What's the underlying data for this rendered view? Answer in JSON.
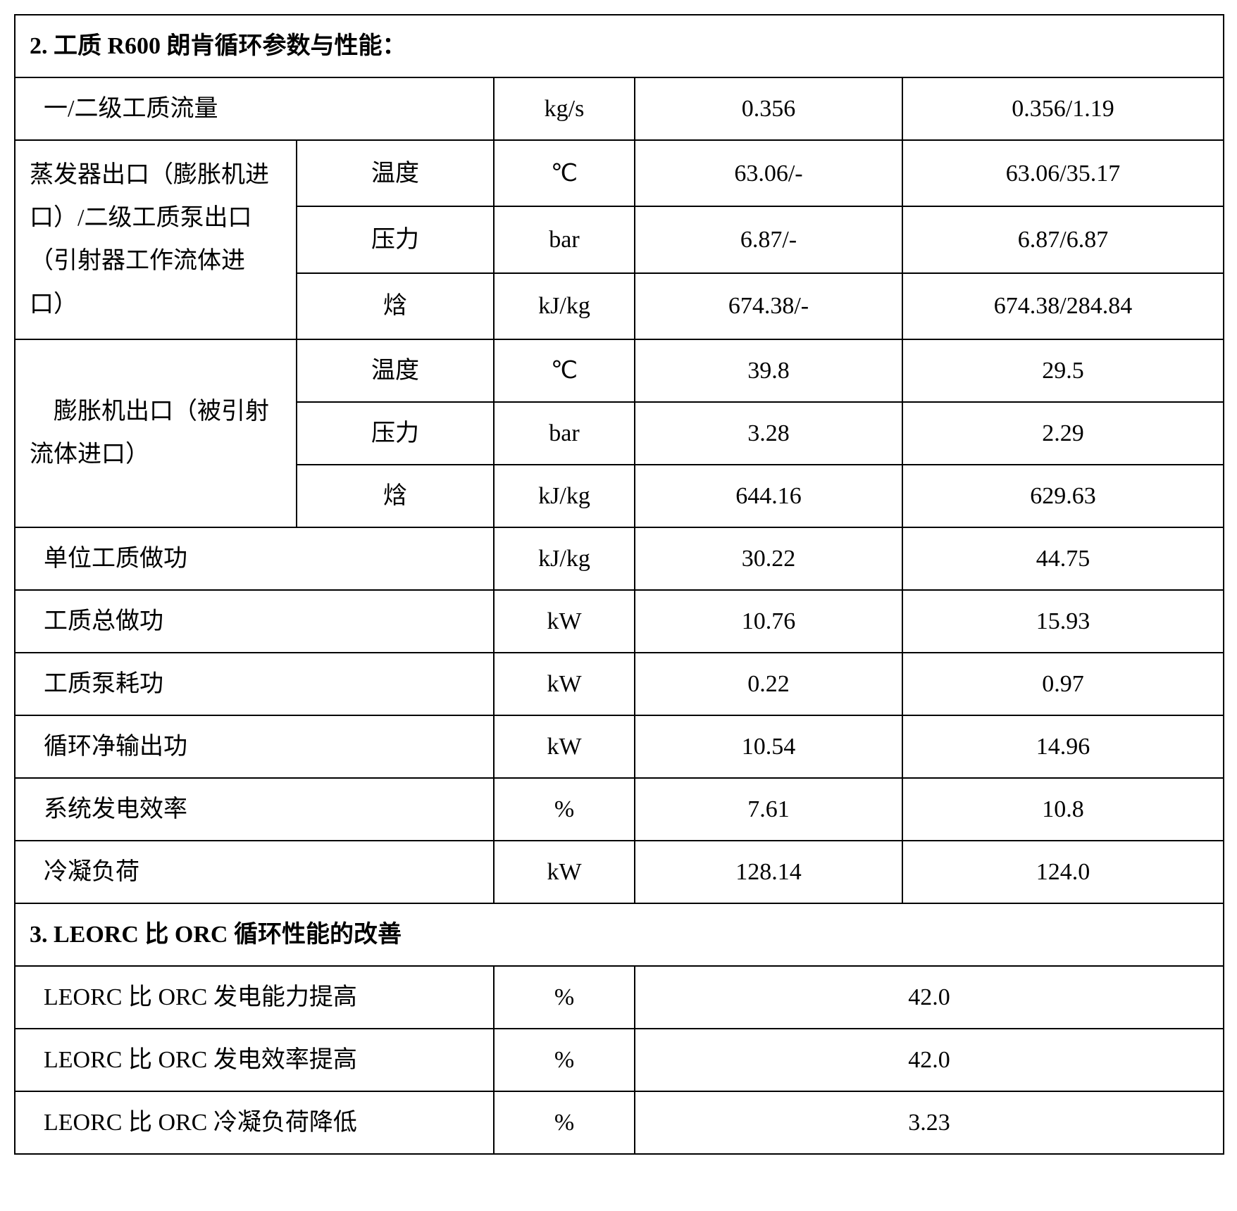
{
  "section2": {
    "title": "2. 工质 R600 朗肯循环参数与性能：",
    "rows": {
      "flow": {
        "label": "一/二级工质流量",
        "unit": "kg/s",
        "v1": "0.356",
        "v2": "0.356/1.19"
      },
      "evap": {
        "label": "蒸发器出口（膨胀机进口）/二级工质泵出口（引射器工作流体进口）",
        "temp": {
          "sub": "温度",
          "unit": "℃",
          "v1": "63.06/-",
          "v2": "63.06/35.17"
        },
        "pres": {
          "sub": "压力",
          "unit": "bar",
          "v1": "6.87/-",
          "v2": "6.87/6.87"
        },
        "enth": {
          "sub": "焓",
          "unit": "kJ/kg",
          "v1": "674.38/-",
          "v2": "674.38/284.84"
        }
      },
      "expander": {
        "label": "    膨胀机出口（被引射流体进口）",
        "temp": {
          "sub": "温度",
          "unit": "℃",
          "v1": "39.8",
          "v2": "29.5"
        },
        "pres": {
          "sub": "压力",
          "unit": "bar",
          "v1": "3.28",
          "v2": "2.29"
        },
        "enth": {
          "sub": "焓",
          "unit": "kJ/kg",
          "v1": "644.16",
          "v2": "629.63"
        }
      },
      "unitwork": {
        "label": "单位工质做功",
        "unit": "kJ/kg",
        "v1": "30.22",
        "v2": "44.75"
      },
      "totalwork": {
        "label": "工质总做功",
        "unit": "kW",
        "v1": "10.76",
        "v2": "15.93"
      },
      "pumpwork": {
        "label": "工质泵耗功",
        "unit": "kW",
        "v1": "0.22",
        "v2": "0.97"
      },
      "netout": {
        "label": "循环净输出功",
        "unit": "kW",
        "v1": "10.54",
        "v2": "14.96"
      },
      "eff": {
        "label": "系统发电效率",
        "unit": "%",
        "v1": "7.61",
        "v2": "10.8"
      },
      "cond": {
        "label": "冷凝负荷",
        "unit": "kW",
        "v1": "128.14",
        "v2": "124.0"
      }
    }
  },
  "section3": {
    "title": "3. LEORC 比 ORC 循环性能的改善",
    "rows": {
      "cap": {
        "label": "LEORC 比 ORC 发电能力提高",
        "unit": "%",
        "val": "42.0"
      },
      "eff": {
        "label": "LEORC 比 ORC 发电效率提高",
        "unit": "%",
        "val": "42.0"
      },
      "cond": {
        "label": "LEORC 比 ORC 冷凝负荷降低",
        "unit": "%",
        "val": "3.23"
      }
    }
  }
}
